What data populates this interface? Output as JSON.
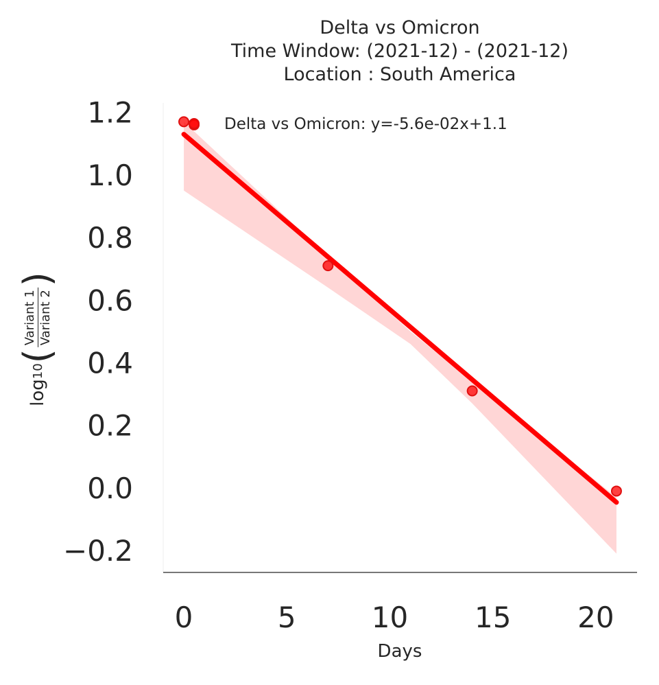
{
  "chart_data": {
    "type": "scatter",
    "title": [
      "Delta vs Omicron",
      "Time Window: (2021-12) - (2021-12)",
      "Location : South America"
    ],
    "xlabel": "Days",
    "ylabel": {
      "prefix": "log",
      "subscript": "10",
      "numerator": "Variant 1",
      "denominator": "Variant 2"
    },
    "xlim": [
      -1,
      22
    ],
    "ylim": [
      -0.27,
      1.23
    ],
    "xticks": [
      0,
      5,
      10,
      15,
      20
    ],
    "yticks": [
      1.2,
      1.0,
      0.8,
      0.6,
      0.4,
      0.2,
      0.0,
      -0.2
    ],
    "ytick_labels": [
      "1.2",
      "1.0",
      "0.8",
      "0.6",
      "0.4",
      "0.2",
      "0.0",
      "−0.2"
    ],
    "xtick_labels": [
      "0",
      "5",
      "10",
      "15",
      "20"
    ],
    "series": [
      {
        "name": "Delta vs Omicron: y=-5.6e-02x+1.1",
        "color": "#ff0000",
        "points": [
          {
            "x": 0,
            "y": 1.17
          },
          {
            "x": 0.5,
            "y": 1.16
          },
          {
            "x": 7,
            "y": 0.71
          },
          {
            "x": 14,
            "y": 0.31
          },
          {
            "x": 21,
            "y": -0.01
          }
        ],
        "fit": {
          "slope": -0.056,
          "intercept": 1.13,
          "x_range": [
            0,
            21
          ]
        },
        "confidence_band": {
          "x": [
            0,
            7,
            11,
            14,
            21
          ],
          "upper": [
            1.17,
            0.74,
            0.5,
            0.34,
            -0.03
          ],
          "lower": [
            0.95,
            0.64,
            0.46,
            0.27,
            -0.21
          ]
        }
      }
    ],
    "legend_position": "top"
  }
}
